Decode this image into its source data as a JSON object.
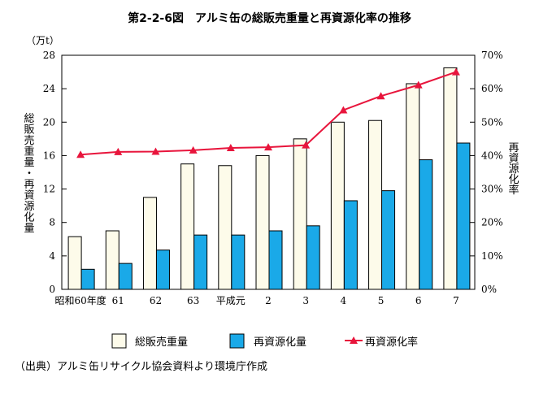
{
  "chart_data": {
    "type": "bar",
    "title": "第2-2-6図　アルミ缶の総販売重量と再資源化率の推移",
    "categories": [
      "昭和60年度",
      "61",
      "62",
      "63",
      "平成元",
      "2",
      "3",
      "4",
      "5",
      "6",
      "7"
    ],
    "left_axis": {
      "unit": "（万t）",
      "label": "総販売重量・再資源化量",
      "range": [
        0,
        28
      ],
      "ticks": [
        "0",
        "4",
        "8",
        "12",
        "16",
        "20",
        "24",
        "28"
      ]
    },
    "right_axis": {
      "label": "再資源化率",
      "range": [
        0,
        70
      ],
      "ticks": [
        "0%",
        "10%",
        "20%",
        "30%",
        "40%",
        "50%",
        "60%",
        "70%"
      ]
    },
    "series": [
      {
        "name": "総販売重量",
        "kind": "bar",
        "axis": "left",
        "color": "#fdfbea",
        "values": [
          6.3,
          7.0,
          11.0,
          15.0,
          14.8,
          16.0,
          18.0,
          20.0,
          20.2,
          24.6,
          26.5
        ]
      },
      {
        "name": "再資源化量",
        "kind": "bar",
        "axis": "left",
        "color": "#1aa9e8",
        "values": [
          2.4,
          3.1,
          4.7,
          6.5,
          6.5,
          7.0,
          7.6,
          10.6,
          11.8,
          15.5,
          17.5
        ]
      },
      {
        "name": "再資源化率",
        "kind": "line",
        "axis": "right",
        "color": "#e8153c",
        "values": [
          40.3,
          41.1,
          41.2,
          41.6,
          42.3,
          42.5,
          43.1,
          53.6,
          57.8,
          61.1,
          65.0
        ]
      }
    ],
    "legend_position": "bottom",
    "grid": false
  },
  "source": "（出典）アルミ缶リサイクル協会資料より環境庁作成"
}
